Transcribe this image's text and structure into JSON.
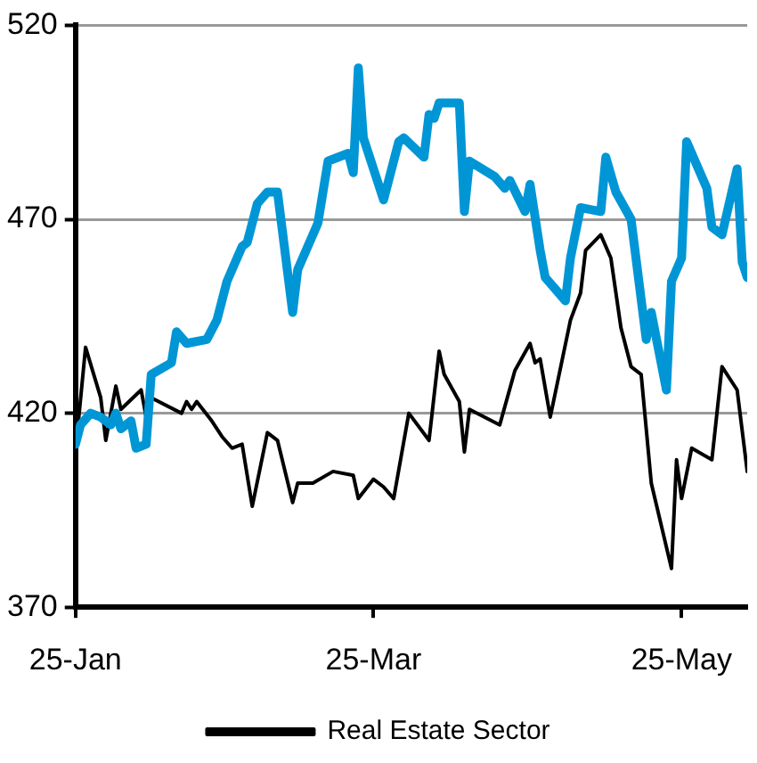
{
  "chart_data": {
    "type": "line",
    "xlim": [
      "--01-25",
      "--06-07"
    ],
    "xticks": [
      {
        "value": "--01-25",
        "label": "25-Jan"
      },
      {
        "value": "--03-25",
        "label": "25-Mar"
      },
      {
        "value": "--05-25",
        "label": "25-May"
      }
    ],
    "ylim": [
      370,
      520
    ],
    "yticks": [
      370,
      420,
      470,
      520
    ],
    "grid": "y",
    "legend": "bottom",
    "marker": "none",
    "line_style": "solid",
    "series": [
      {
        "color": "#0096d6",
        "x": [
          "--01-25",
          "--01-26",
          "--01-28",
          "--01-30",
          "--02-01",
          "--02-02",
          "--02-03",
          "--02-05",
          "--02-06",
          "--02-08",
          "--02-09",
          "--02-13",
          "--02-14",
          "--02-16",
          "--02-20",
          "--02-22",
          "--02-24",
          "--02-27",
          "--02-28",
          "--03-02",
          "--03-04",
          "--03-06",
          "--03-09",
          "--03-10",
          "--03-14",
          "--03-16",
          "--03-20",
          "--03-21",
          "--03-22",
          "--03-23",
          "--03-27",
          "--03-30",
          "--03-31",
          "--04-04",
          "--04-05",
          "--04-06",
          "--04-07",
          "--04-11",
          "--04-12",
          "--04-13",
          "--04-18",
          "--04-20",
          "--04-21",
          "--04-24",
          "--04-25",
          "--04-27",
          "--04-28",
          "--05-02",
          "--05-03",
          "--05-05",
          "--05-09",
          "--05-10",
          "--05-12",
          "--05-15",
          "--05-18",
          "--05-19",
          "--05-22",
          "--05-23",
          "--05-25",
          "--05-26",
          "--05-30",
          "--05-31",
          "--06-02",
          "--06-05",
          "--06-06",
          "--06-07"
        ],
        "values": [
          412,
          417,
          420,
          419,
          417,
          420,
          416,
          418,
          411,
          412,
          430,
          433,
          441,
          438,
          439,
          444,
          454,
          463,
          464,
          474,
          477,
          477,
          446,
          457,
          469,
          485,
          487,
          482,
          509,
          491,
          475,
          490,
          491,
          486,
          497,
          496,
          500,
          500,
          472,
          485,
          481,
          478,
          480,
          472,
          479,
          462,
          455,
          449,
          460,
          473,
          472,
          486,
          477,
          470,
          439,
          446,
          426,
          454,
          460,
          490,
          478,
          468,
          466,
          483,
          459,
          455
        ]
      },
      {
        "name": "Real Estate Sector",
        "color": "#000000",
        "x": [
          "--01-25",
          "--01-27",
          "--01-30",
          "--01-31",
          "--02-02",
          "--02-03",
          "--02-07",
          "--02-08",
          "--02-09",
          "--02-15",
          "--02-16",
          "--02-17",
          "--02-18",
          "--02-21",
          "--02-23",
          "--02-25",
          "--02-27",
          "--03-01",
          "--03-04",
          "--03-06",
          "--03-09",
          "--03-10",
          "--03-13",
          "--03-17",
          "--03-21",
          "--03-22",
          "--03-25",
          "--03-27",
          "--03-29",
          "--04-01",
          "--04-05",
          "--04-07",
          "--04-08",
          "--04-11",
          "--04-12",
          "--04-13",
          "--04-19",
          "--04-22",
          "--04-25",
          "--04-26",
          "--04-27",
          "--04-29",
          "--05-03",
          "--05-05",
          "--05-06",
          "--05-09",
          "--05-11",
          "--05-13",
          "--05-15",
          "--05-17",
          "--05-19",
          "--05-23",
          "--05-24",
          "--05-25",
          "--05-27",
          "--05-31",
          "--06-02",
          "--06-05",
          "--06-07"
        ],
        "values": [
          410,
          437,
          424,
          413,
          427,
          421,
          426,
          419,
          424,
          420,
          423,
          421,
          423,
          418,
          414,
          411,
          412,
          396,
          415,
          413,
          397,
          402,
          402,
          405,
          404,
          398,
          403,
          401,
          398,
          420,
          413,
          436,
          430,
          423,
          410,
          421,
          417,
          431,
          438,
          433,
          434,
          419,
          444,
          451,
          462,
          466,
          460,
          442,
          432,
          430,
          402,
          380,
          408,
          398,
          411,
          408,
          432,
          426,
          405
        ]
      }
    ]
  }
}
